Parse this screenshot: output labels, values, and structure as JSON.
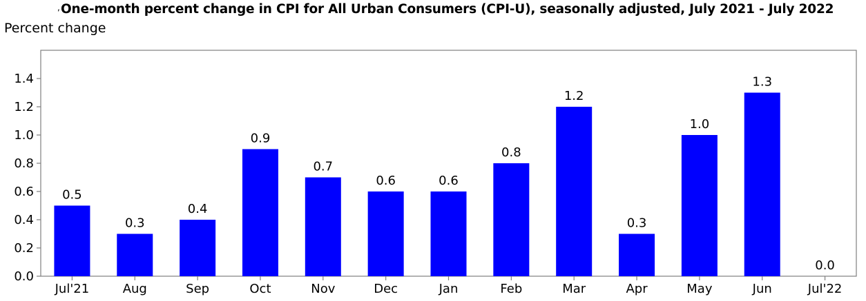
{
  "chart_data": {
    "type": "bar",
    "title": "One-month percent change in CPI for All Urban Consumers (CPI-U), seasonally adjusted, July 2021 - July 2022",
    "title_mark": ",",
    "ylabel": "Percent change",
    "xlabel": "",
    "categories": [
      "Jul'21",
      "Aug",
      "Sep",
      "Oct",
      "Nov",
      "Dec",
      "Jan",
      "Feb",
      "Mar",
      "Apr",
      "May",
      "Jun",
      "Jul'22"
    ],
    "values": [
      0.5,
      0.3,
      0.4,
      0.9,
      0.7,
      0.6,
      0.6,
      0.8,
      1.2,
      0.3,
      1.0,
      1.3,
      0.0
    ],
    "data_labels": [
      "0.5",
      "0.3",
      "0.4",
      "0.9",
      "0.7",
      "0.6",
      "0.6",
      "0.8",
      "1.2",
      "0.3",
      "1.0",
      "1.3",
      "0.0"
    ],
    "yticks": [
      "0.0",
      "0.2",
      "0.4",
      "0.6",
      "0.8",
      "1.0",
      "1.2",
      "1.4"
    ],
    "ylim": [
      0,
      1.6
    ],
    "grid": false,
    "bar_color": "#0000ff",
    "axis_color": "#7f7f7f"
  }
}
